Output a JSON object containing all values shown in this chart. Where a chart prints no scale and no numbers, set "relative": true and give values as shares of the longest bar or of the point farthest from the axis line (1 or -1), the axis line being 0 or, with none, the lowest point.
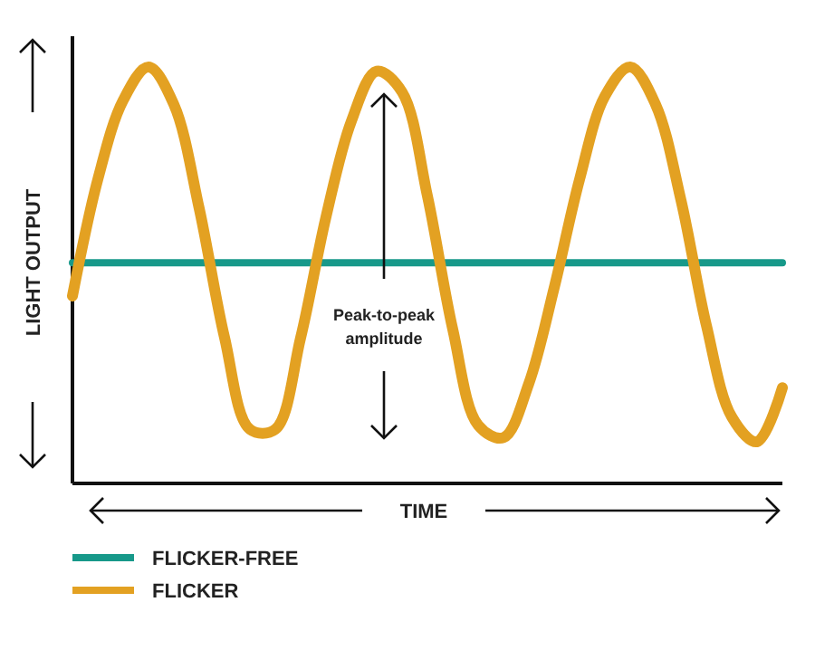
{
  "chart_data": {
    "type": "line",
    "relative": true,
    "xlabel": "TIME",
    "ylabel": "LIGHT OUTPUT",
    "legend": "bottom",
    "annotations": [
      "Peak-to-peak amplitude"
    ],
    "categories": [
      null,
      null,
      null,
      null,
      null,
      null,
      null,
      null,
      null,
      null,
      null,
      null,
      null,
      null,
      null,
      null,
      null,
      null,
      null,
      null,
      null,
      null,
      null,
      null,
      null,
      null,
      null,
      null,
      null
    ],
    "series": [
      {
        "name": "FLICKER-FREE",
        "color": "#17998a",
        "values": [
          0.53,
          0.53,
          0.53,
          0.53,
          0.53,
          0.53,
          0.53,
          0.53,
          0.53,
          0.53,
          0.53,
          0.53,
          0.53,
          0.53,
          0.53,
          0.53,
          0.53,
          0.53,
          0.53,
          0.53,
          0.53,
          0.53,
          0.53,
          0.53,
          0.53,
          0.53,
          0.53,
          0.53,
          0.53
        ]
      },
      {
        "name": "FLICKER",
        "color": "#e3a122",
        "values": [
          0.45,
          0.73,
          0.92,
          1.0,
          0.91,
          0.66,
          0.35,
          0.13,
          0.13,
          0.35,
          0.64,
          0.87,
          0.99,
          0.94,
          0.69,
          0.37,
          0.14,
          0.11,
          0.24,
          0.47,
          0.73,
          0.93,
          1.0,
          0.91,
          0.68,
          0.38,
          0.16,
          0.1,
          0.23
        ]
      }
    ]
  }
}
